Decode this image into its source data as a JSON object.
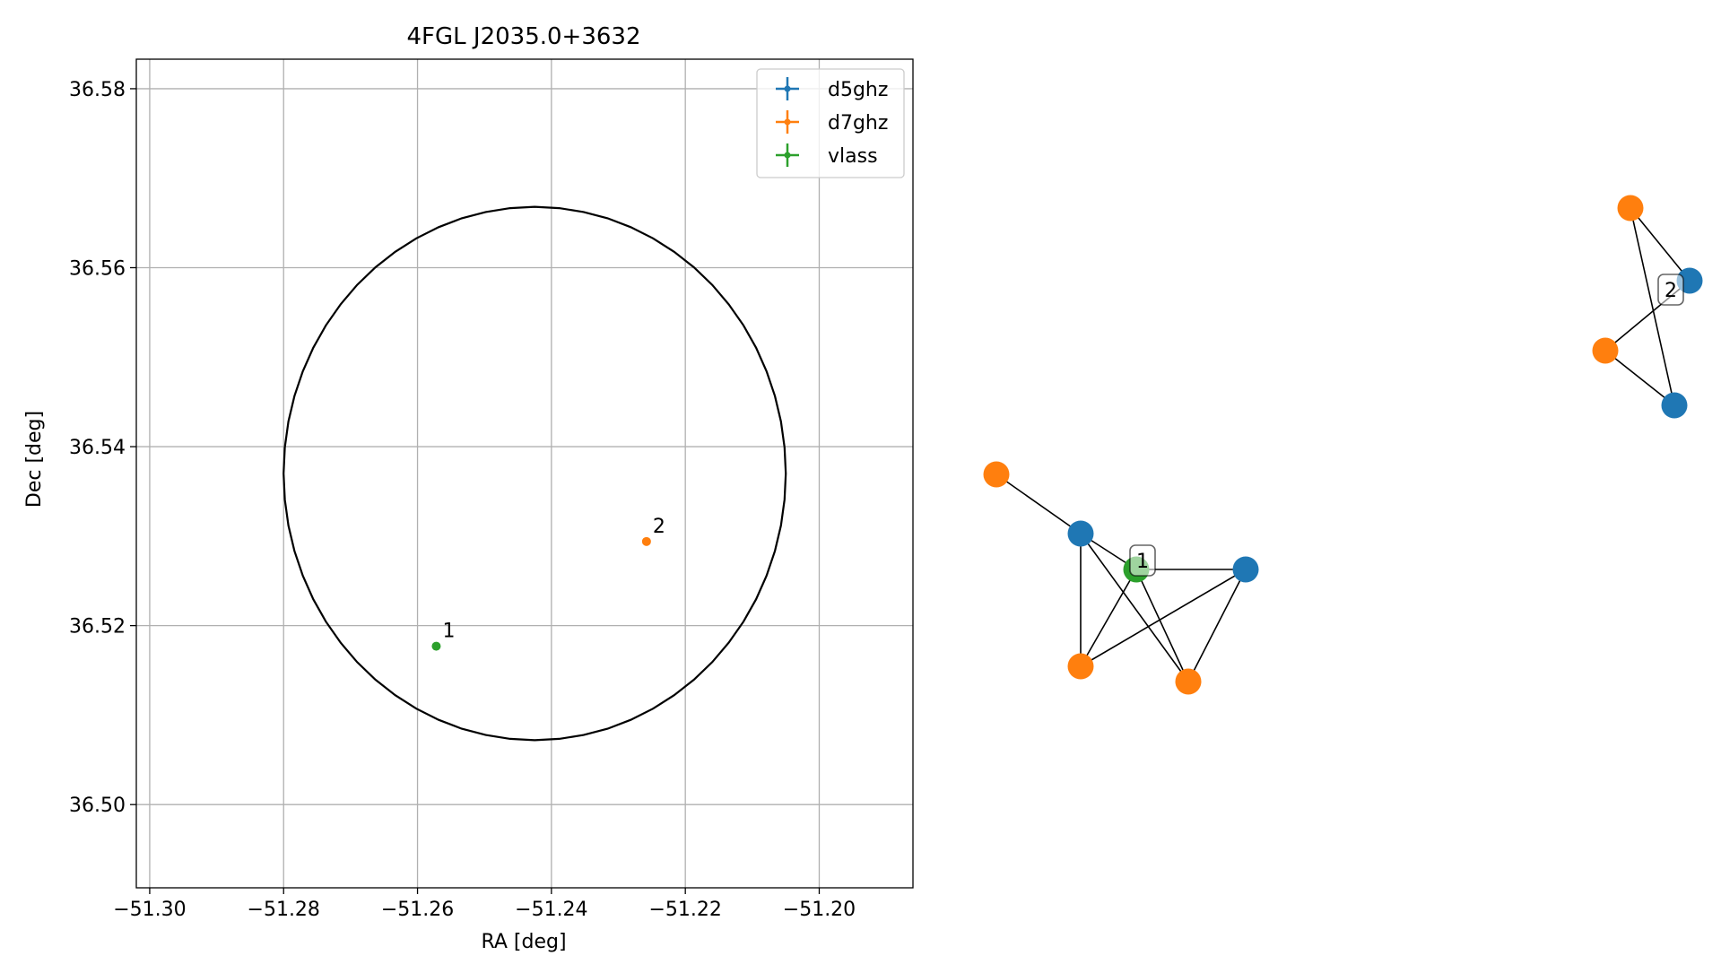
{
  "chart_data": [
    {
      "type": "scatter",
      "title": "4FGL J2035.0+3632",
      "xlabel": "RA [deg]",
      "ylabel": "Dec [deg]",
      "xlim": [
        -51.302,
        -51.186
      ],
      "ylim": [
        36.4907,
        36.5833
      ],
      "xticks": [
        -51.3,
        -51.28,
        -51.26,
        -51.24,
        -51.22,
        -51.2
      ],
      "xtick_labels": [
        "−51.30",
        "−51.28",
        "−51.26",
        "−51.24",
        "−51.22",
        "−51.20"
      ],
      "yticks": [
        36.5,
        36.52,
        36.54,
        36.56,
        36.58
      ],
      "ytick_labels": [
        "36.50",
        "36.52",
        "36.54",
        "36.56",
        "36.58"
      ],
      "grid": true,
      "legend_position": "top-right",
      "legend": [
        {
          "name": "d5ghz",
          "color": "#1f77b4"
        },
        {
          "name": "d7ghz",
          "color": "#ff7f0e"
        },
        {
          "name": "vlass",
          "color": "#2ca02c"
        }
      ],
      "ellipse": {
        "center_ra": -51.2425,
        "center_dec": 36.537,
        "radius_ra": 0.0375,
        "radius_dec": 0.0298,
        "color": "#000000"
      },
      "points": [
        {
          "label": "1",
          "ra": -51.2572,
          "dec": 36.5177,
          "color": "#2ca02c"
        },
        {
          "label": "2",
          "ra": -51.2258,
          "dec": 36.5294,
          "color": "#ff7f0e"
        }
      ]
    },
    {
      "type": "network",
      "groups": [
        {
          "label": "1",
          "nodes": [
            {
              "id": "a",
              "color": "#ff7f0e"
            },
            {
              "id": "b",
              "color": "#1f77b4"
            },
            {
              "id": "c",
              "color": "#2ca02c"
            },
            {
              "id": "d",
              "color": "#1f77b4"
            },
            {
              "id": "e",
              "color": "#ff7f0e"
            },
            {
              "id": "f",
              "color": "#ff7f0e"
            }
          ],
          "edges": [
            [
              "a",
              "b"
            ],
            [
              "b",
              "c"
            ],
            [
              "b",
              "e"
            ],
            [
              "b",
              "f"
            ],
            [
              "c",
              "d"
            ],
            [
              "c",
              "e"
            ],
            [
              "c",
              "f"
            ],
            [
              "d",
              "e"
            ],
            [
              "d",
              "f"
            ]
          ]
        },
        {
          "label": "2",
          "nodes": [
            {
              "id": "g",
              "color": "#ff7f0e"
            },
            {
              "id": "h",
              "color": "#1f77b4"
            },
            {
              "id": "i",
              "color": "#ff7f0e"
            },
            {
              "id": "j",
              "color": "#1f77b4"
            }
          ],
          "edges": [
            [
              "g",
              "h"
            ],
            [
              "g",
              "j"
            ],
            [
              "h",
              "i"
            ],
            [
              "i",
              "j"
            ]
          ]
        }
      ]
    }
  ]
}
